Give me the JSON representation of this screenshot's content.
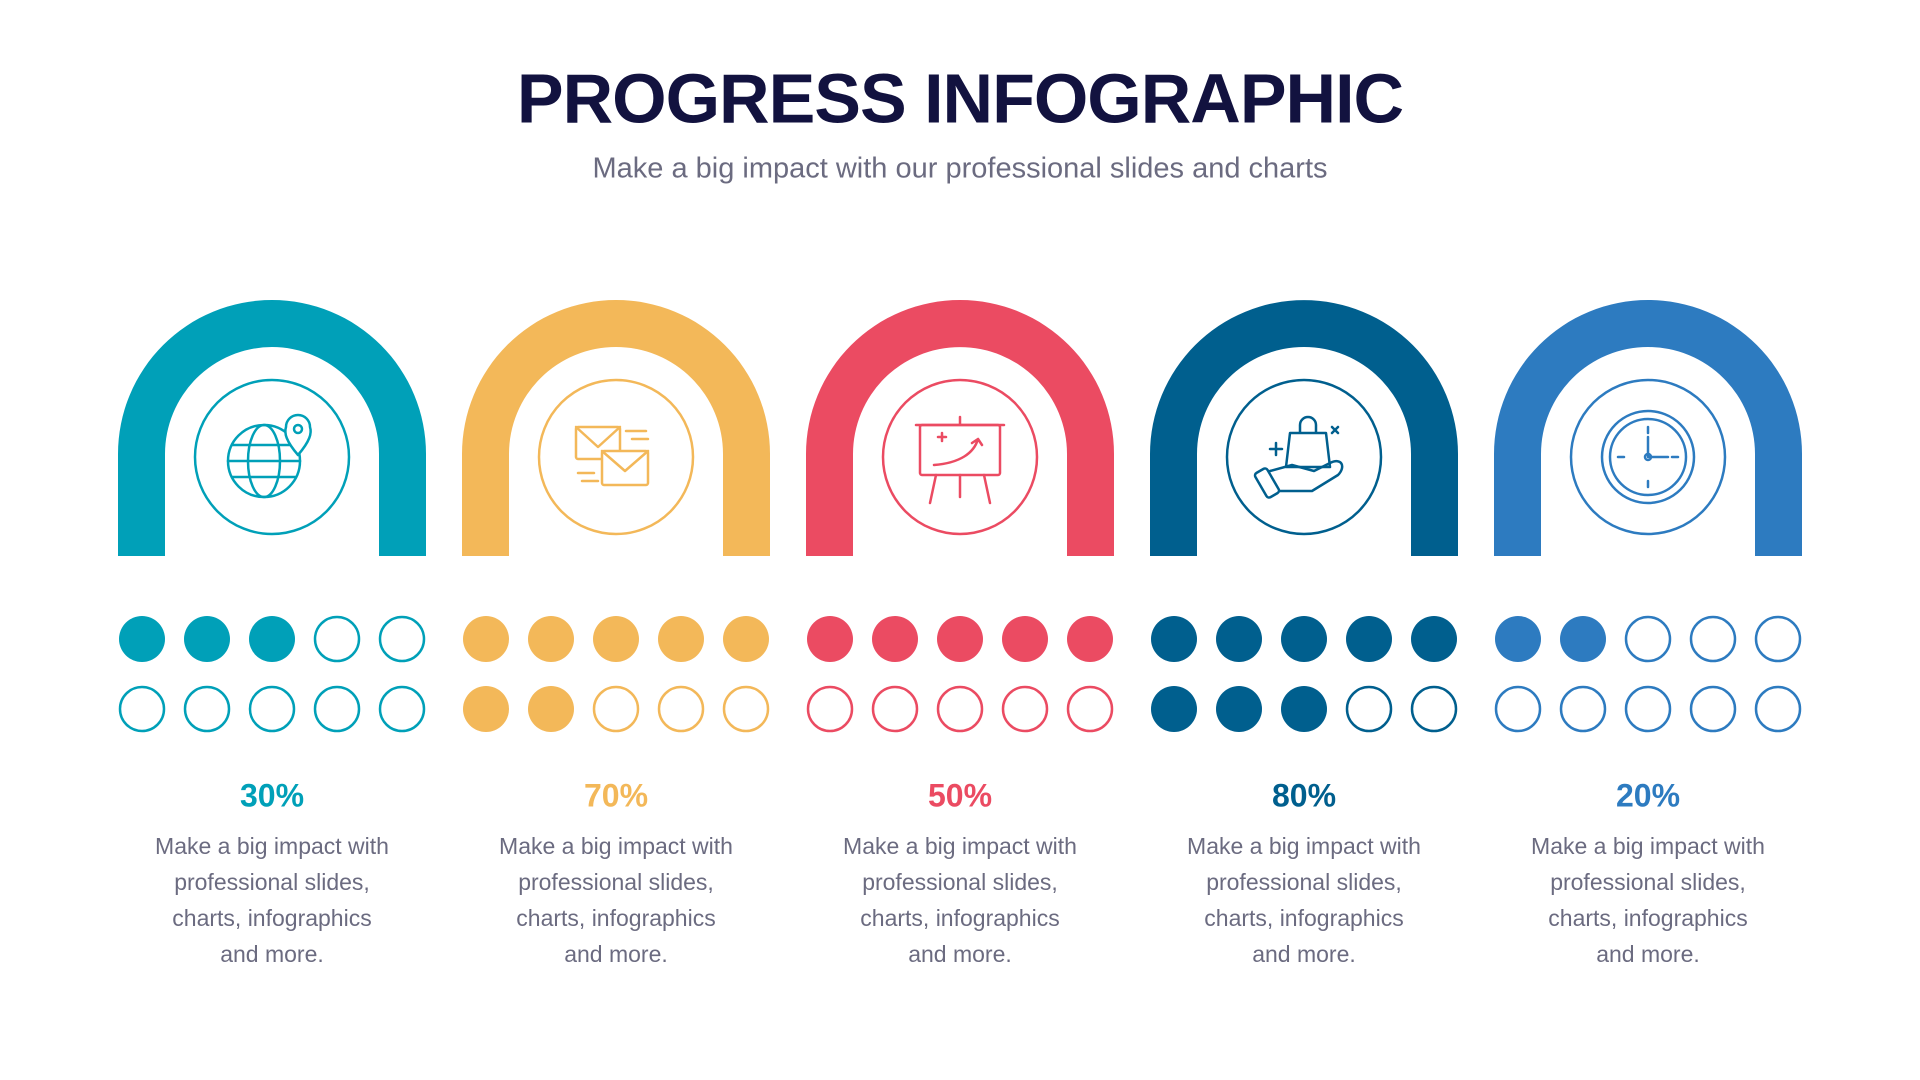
{
  "header": {
    "title": "PROGRESS INFOGRAPHIC",
    "subtitle": "Make a big impact with our professional slides and charts"
  },
  "items": [
    {
      "value": 30,
      "label": "30%",
      "color": "#00a0b8",
      "text": [
        "Make a big impact with",
        "professional slides,",
        "charts, infographics",
        "and more."
      ]
    },
    {
      "value": 70,
      "label": "70%",
      "color": "#f3b859",
      "text": [
        "Make a big impact with",
        "professional slides,",
        "charts, infographics",
        "and more."
      ]
    },
    {
      "value": 50,
      "label": "50%",
      "color": "#eb4b62",
      "text": [
        "Make a big impact with",
        "professional slides,",
        "charts, infographics",
        "and more."
      ]
    },
    {
      "value": 80,
      "label": "80%",
      "color": "#005f8e",
      "text": [
        "Make a big impact with",
        "professional slides,",
        "charts, infographics",
        "and more."
      ]
    },
    {
      "value": 20,
      "label": "20%",
      "color": "#2d7bc0",
      "text": [
        "Make a big impact with",
        "professional slides,",
        "charts, infographics",
        "and more."
      ]
    }
  ]
}
